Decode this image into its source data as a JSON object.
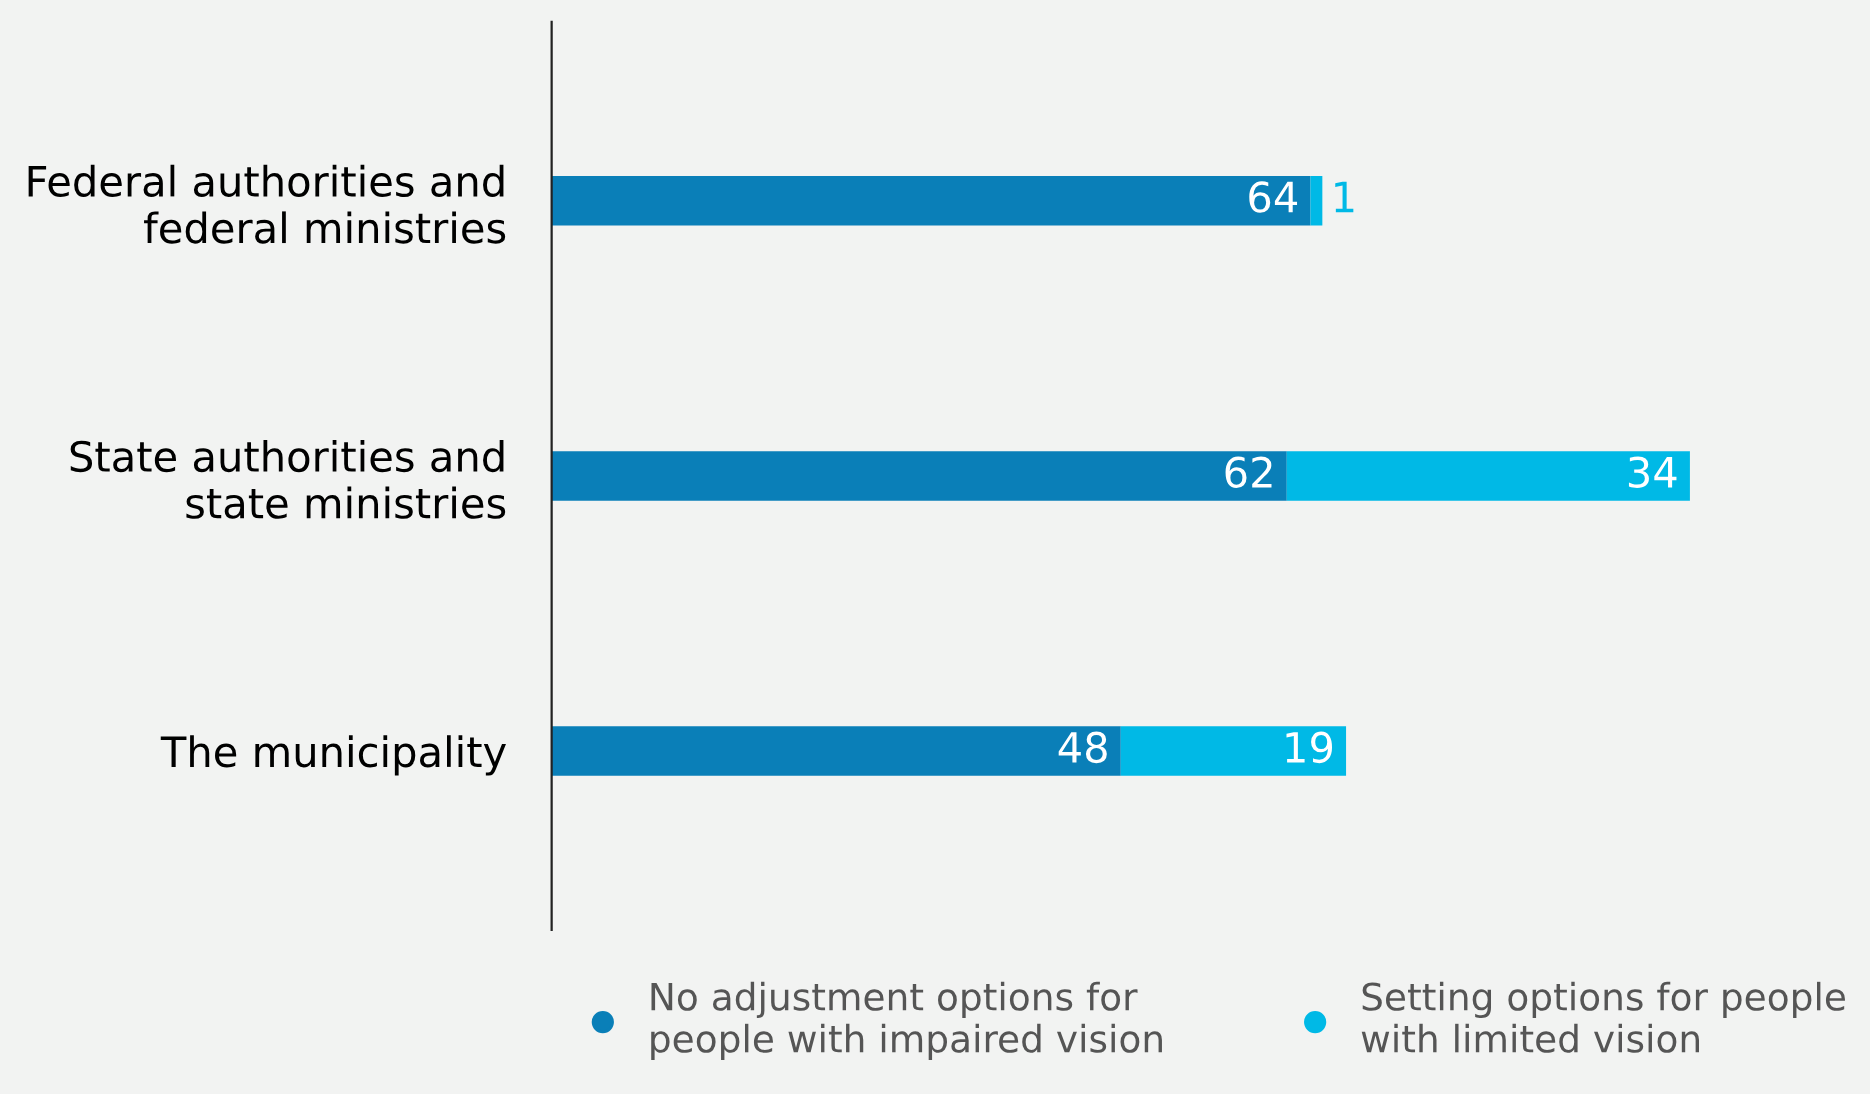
{
  "chart_data": {
    "type": "bar",
    "orientation": "horizontal",
    "stacked": true,
    "data_labels": true,
    "legend": "bottom",
    "grid": false,
    "categories": [
      "Federal authorities and\nfederal ministries",
      "State authorities and\nstate ministries",
      "The municipality"
    ],
    "series": [
      {
        "name": "No adjustment options for\npeople with impaired vision",
        "color": "#0a7fb8",
        "values": [
          64,
          62,
          48
        ]
      },
      {
        "name": "Setting options for people\nwith limited vision",
        "color": "#00b9e6",
        "values": [
          1,
          34,
          19
        ]
      }
    ]
  }
}
